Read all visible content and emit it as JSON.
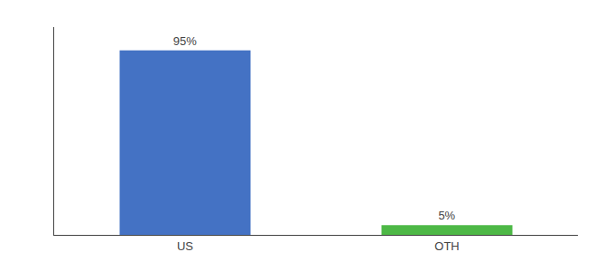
{
  "chart_data": {
    "type": "bar",
    "categories": [
      "US",
      "OTH"
    ],
    "values": [
      95,
      5
    ],
    "value_labels": [
      "95%",
      "5%"
    ],
    "data_labels": true,
    "colors": [
      "#4472c4",
      "#4db846"
    ],
    "ylim": [
      0,
      107
    ],
    "tick_labels": "x",
    "grid": false
  }
}
